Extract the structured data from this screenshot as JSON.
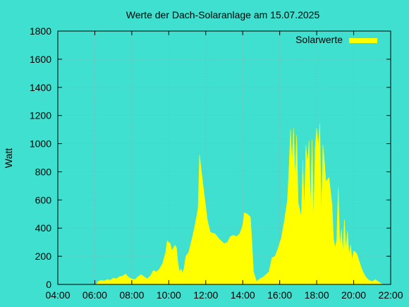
{
  "chart_data": {
    "type": "area",
    "title": "Werte der Dach-Solaranlage am 15.07.2025",
    "xlabel": "",
    "ylabel": "Watt",
    "xlim": [
      "04:00",
      "22:00"
    ],
    "ylim": [
      0,
      1800
    ],
    "x_ticks": [
      "04:00",
      "06:00",
      "08:00",
      "10:00",
      "12:00",
      "14:00",
      "16:00",
      "18:00",
      "20:00",
      "22:00"
    ],
    "y_ticks": [
      "0",
      "200",
      "400",
      "600",
      "800",
      "1000",
      "1200",
      "1400",
      "1600",
      "1800"
    ],
    "grid": true,
    "legend_position": "top-right",
    "colors": {
      "background": "#40e0d0",
      "series": "#ffff00",
      "grid": "#a0a0a0",
      "axis": "#000000"
    },
    "series": [
      {
        "name": "Solarwerte",
        "points": [
          [
            "06:05",
            0
          ],
          [
            "06:10",
            20
          ],
          [
            "06:20",
            30
          ],
          [
            "06:30",
            25
          ],
          [
            "06:40",
            35
          ],
          [
            "06:50",
            30
          ],
          [
            "07:00",
            45
          ],
          [
            "07:10",
            40
          ],
          [
            "07:20",
            55
          ],
          [
            "07:30",
            60
          ],
          [
            "07:40",
            75
          ],
          [
            "07:50",
            50
          ],
          [
            "08:00",
            40
          ],
          [
            "08:10",
            35
          ],
          [
            "08:20",
            55
          ],
          [
            "08:30",
            70
          ],
          [
            "08:40",
            55
          ],
          [
            "08:50",
            40
          ],
          [
            "09:00",
            60
          ],
          [
            "09:10",
            100
          ],
          [
            "09:20",
            90
          ],
          [
            "09:30",
            110
          ],
          [
            "09:40",
            150
          ],
          [
            "09:50",
            230
          ],
          [
            "09:55",
            310
          ],
          [
            "10:05",
            290
          ],
          [
            "10:10",
            240
          ],
          [
            "10:20",
            280
          ],
          [
            "10:25",
            260
          ],
          [
            "10:30",
            150
          ],
          [
            "10:35",
            90
          ],
          [
            "10:40",
            110
          ],
          [
            "10:45",
            80
          ],
          [
            "10:50",
            120
          ],
          [
            "10:55",
            200
          ],
          [
            "11:05",
            230
          ],
          [
            "11:15",
            320
          ],
          [
            "11:25",
            420
          ],
          [
            "11:35",
            540
          ],
          [
            "11:40",
            920
          ],
          [
            "11:45",
            820
          ],
          [
            "11:55",
            640
          ],
          [
            "12:05",
            460
          ],
          [
            "12:15",
            370
          ],
          [
            "12:30",
            360
          ],
          [
            "12:45",
            320
          ],
          [
            "13:00",
            290
          ],
          [
            "13:10",
            300
          ],
          [
            "13:20",
            340
          ],
          [
            "13:30",
            350
          ],
          [
            "13:40",
            340
          ],
          [
            "13:50",
            360
          ],
          [
            "14:00",
            420
          ],
          [
            "14:05",
            510
          ],
          [
            "14:15",
            500
          ],
          [
            "14:25",
            480
          ],
          [
            "14:30",
            300
          ],
          [
            "14:35",
            90
          ],
          [
            "14:45",
            20
          ],
          [
            "14:55",
            40
          ],
          [
            "15:05",
            50
          ],
          [
            "15:15",
            70
          ],
          [
            "15:25",
            90
          ],
          [
            "15:35",
            190
          ],
          [
            "15:45",
            200
          ],
          [
            "15:55",
            260
          ],
          [
            "16:05",
            330
          ],
          [
            "16:15",
            450
          ],
          [
            "16:25",
            600
          ],
          [
            "16:30",
            820
          ],
          [
            "16:35",
            1100
          ],
          [
            "16:40",
            870
          ],
          [
            "16:45",
            1110
          ],
          [
            "16:50",
            760
          ],
          [
            "16:55",
            1060
          ],
          [
            "17:00",
            580
          ],
          [
            "17:10",
            480
          ],
          [
            "17:15",
            880
          ],
          [
            "17:20",
            520
          ],
          [
            "17:25",
            990
          ],
          [
            "17:30",
            860
          ],
          [
            "17:35",
            1020
          ],
          [
            "17:40",
            540
          ],
          [
            "17:45",
            1030
          ],
          [
            "17:50",
            470
          ],
          [
            "17:55",
            970
          ],
          [
            "18:00",
            1110
          ],
          [
            "18:05",
            980
          ],
          [
            "18:10",
            1140
          ],
          [
            "18:15",
            500
          ],
          [
            "18:20",
            990
          ],
          [
            "18:25",
            880
          ],
          [
            "18:30",
            730
          ],
          [
            "18:40",
            760
          ],
          [
            "18:50",
            560
          ],
          [
            "18:55",
            320
          ],
          [
            "19:00",
            260
          ],
          [
            "19:05",
            320
          ],
          [
            "19:10",
            690
          ],
          [
            "19:15",
            270
          ],
          [
            "19:20",
            390
          ],
          [
            "19:25",
            230
          ],
          [
            "19:30",
            460
          ],
          [
            "19:35",
            250
          ],
          [
            "19:40",
            380
          ],
          [
            "19:45",
            210
          ],
          [
            "19:50",
            280
          ],
          [
            "19:55",
            170
          ],
          [
            "20:00",
            240
          ],
          [
            "20:10",
            220
          ],
          [
            "20:20",
            150
          ],
          [
            "20:30",
            90
          ],
          [
            "20:40",
            50
          ],
          [
            "20:50",
            30
          ],
          [
            "21:00",
            20
          ],
          [
            "21:10",
            35
          ],
          [
            "21:20",
            20
          ],
          [
            "21:30",
            5
          ],
          [
            "21:35",
            0
          ]
        ]
      }
    ]
  }
}
